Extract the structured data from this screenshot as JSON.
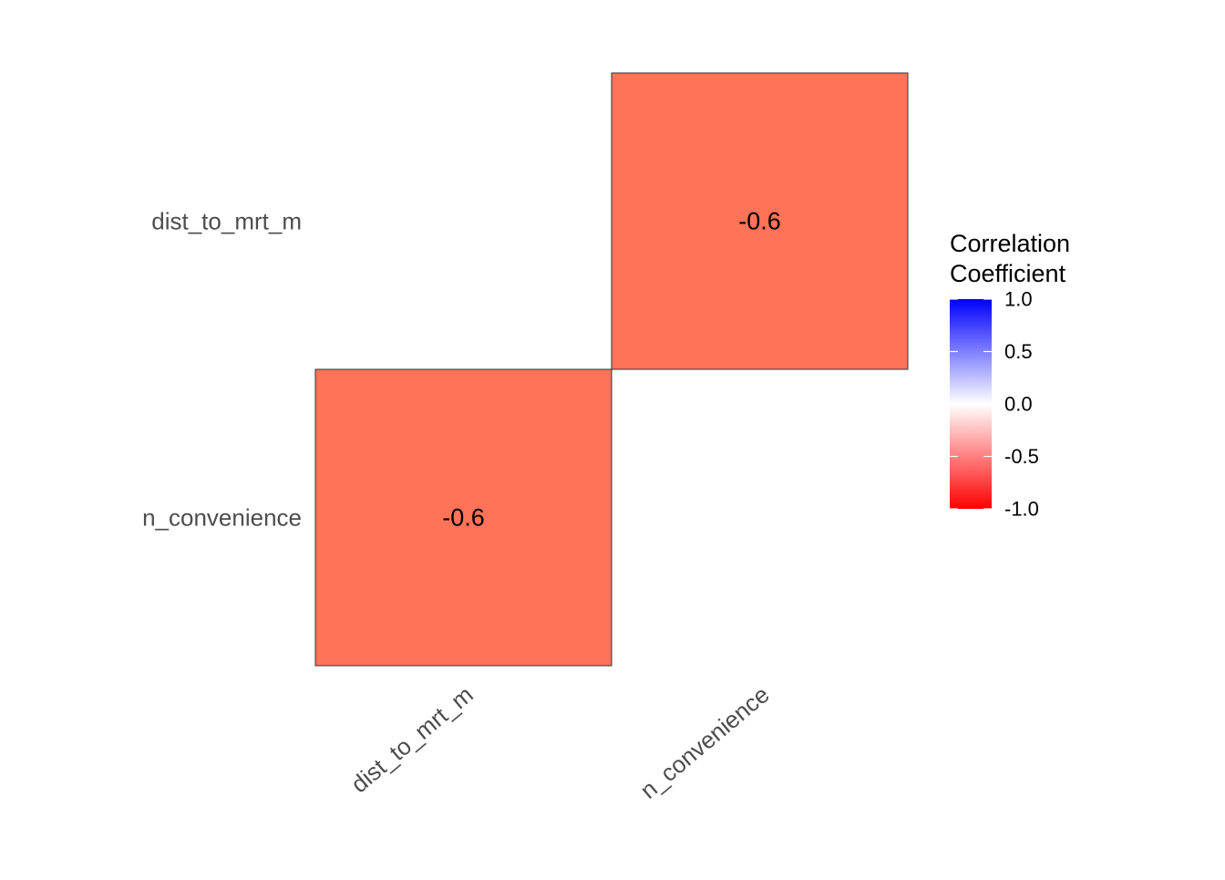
{
  "chart_data": {
    "type": "heatmap",
    "title": "",
    "xlabel": "",
    "ylabel": "",
    "x_categories": [
      "dist_to_mrt_m",
      "n_convenience"
    ],
    "y_categories": [
      "dist_to_mrt_m",
      "n_convenience"
    ],
    "cells": [
      {
        "x": "n_convenience",
        "y": "dist_to_mrt_m",
        "value": -0.6,
        "label": "-0.6"
      },
      {
        "x": "dist_to_mrt_m",
        "y": "n_convenience",
        "value": -0.6,
        "label": "-0.6"
      }
    ],
    "legend": {
      "title_lines": [
        "Correlation",
        "Coefficient"
      ],
      "range": [
        -1.0,
        1.0
      ],
      "ticks": [
        1.0,
        0.5,
        0.0,
        -0.5,
        -1.0
      ],
      "tick_labels": [
        "1.0",
        "0.5",
        "0.0",
        "-0.5",
        "-1.0"
      ],
      "placement": "right"
    },
    "colors": {
      "low": "#ff0000",
      "mid": "#ffffff",
      "high": "#0000ff",
      "cell_fill": "#ff7358",
      "cell_border": "#333333"
    },
    "grid": false
  }
}
